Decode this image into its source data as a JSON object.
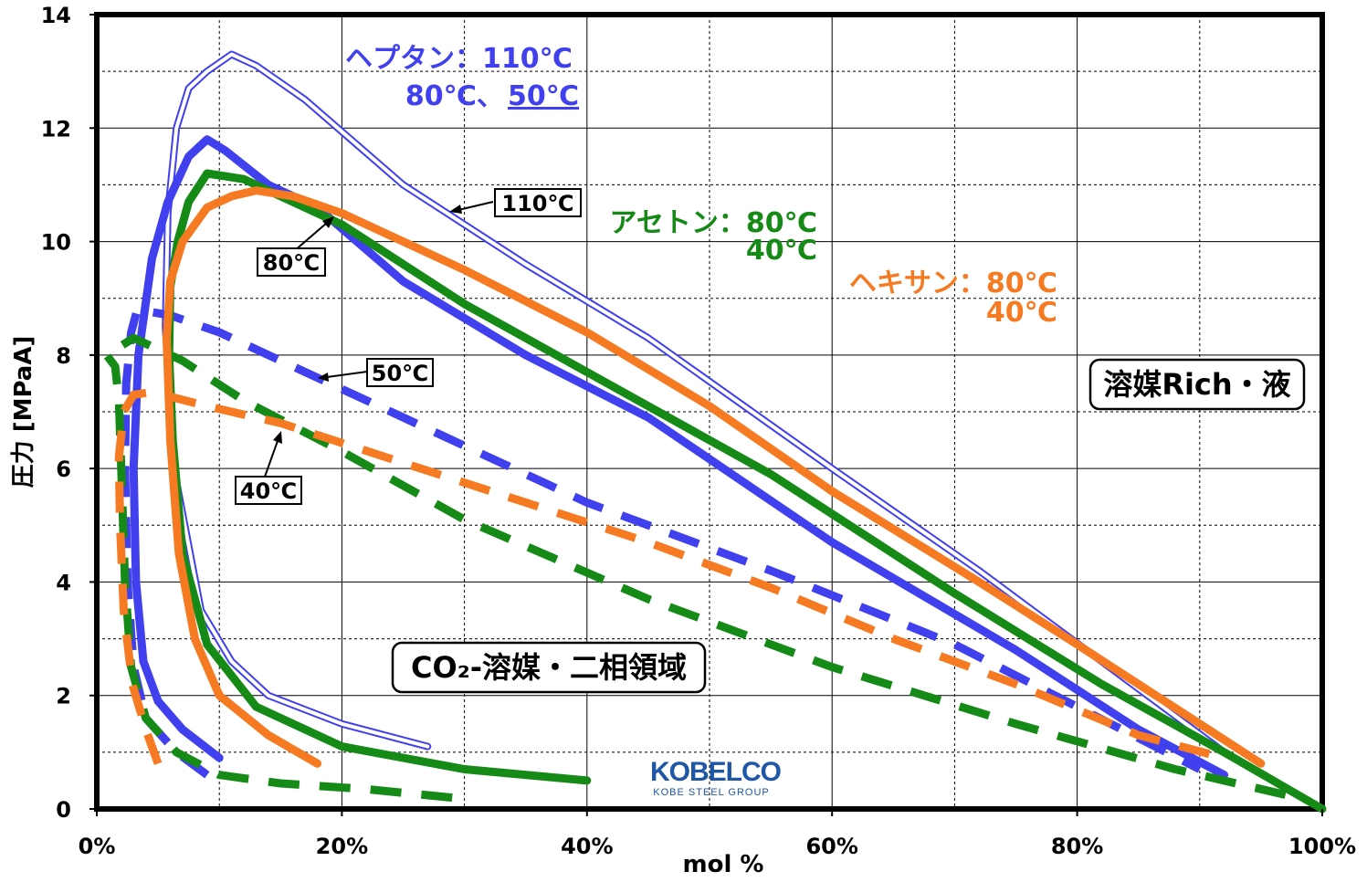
{
  "chart_data": {
    "type": "line",
    "xlabel": "mol %",
    "ylabel": "圧力 [MPaA]",
    "xlim": [
      0,
      100
    ],
    "ylim": [
      0,
      14
    ],
    "x_ticks": [
      "0%",
      "20%",
      "40%",
      "60%",
      "80%",
      "100%"
    ],
    "y_ticks": [
      "0",
      "2",
      "4",
      "6",
      "8",
      "10",
      "12",
      "14"
    ],
    "grid": true,
    "colors": {
      "heptane": "#4040ee",
      "acetone": "#168a16",
      "hexane": "#f57a22"
    },
    "series": [
      {
        "name": "ヘプタン 110℃",
        "color": "#4040ee",
        "style": "double-thin",
        "points": [
          [
            27,
            1.1
          ],
          [
            20,
            1.5
          ],
          [
            14,
            2.0
          ],
          [
            11,
            2.6
          ],
          [
            8.5,
            3.5
          ],
          [
            6.3,
            6
          ],
          [
            5.6,
            8.5
          ],
          [
            5.8,
            10.5
          ],
          [
            6.5,
            12
          ],
          [
            7.5,
            12.7
          ],
          [
            9,
            13.0
          ],
          [
            11,
            13.3
          ],
          [
            13,
            13.1
          ],
          [
            17,
            12.5
          ],
          [
            25,
            11
          ],
          [
            35,
            9.6
          ],
          [
            45,
            8.3
          ],
          [
            60,
            6
          ],
          [
            72,
            4.2
          ],
          [
            82,
            2.6
          ],
          [
            92,
            1.0
          ]
        ]
      },
      {
        "name": "ヘプタン 80℃",
        "color": "#4040ee",
        "style": "solid",
        "points": [
          [
            10,
            0.9
          ],
          [
            7,
            1.4
          ],
          [
            5,
            1.9
          ],
          [
            3.8,
            2.6
          ],
          [
            3.2,
            4
          ],
          [
            3,
            6
          ],
          [
            3.4,
            8
          ],
          [
            4.5,
            9.7
          ],
          [
            5.8,
            10.7
          ],
          [
            7.5,
            11.5
          ],
          [
            9,
            11.8
          ],
          [
            10.5,
            11.6
          ],
          [
            14,
            11.0
          ],
          [
            18,
            10.6
          ],
          [
            25,
            9.3
          ],
          [
            35,
            8.0
          ],
          [
            45,
            6.9
          ],
          [
            60,
            4.7
          ],
          [
            75,
            2.8
          ],
          [
            85,
            1.4
          ],
          [
            92,
            0.6
          ]
        ]
      },
      {
        "name": "ヘプタン 50℃",
        "color": "#4040ee",
        "style": "dashed",
        "points": [
          [
            9,
            0.6
          ],
          [
            6.5,
            1.0
          ],
          [
            4,
            1.6
          ],
          [
            3,
            2.5
          ],
          [
            2.5,
            4
          ],
          [
            2.3,
            6
          ],
          [
            2.4,
            7.5
          ],
          [
            2.8,
            8.4
          ],
          [
            3.3,
            8.8
          ],
          [
            6,
            8.7
          ],
          [
            10,
            8.4
          ],
          [
            20,
            7.4
          ],
          [
            30,
            6.4
          ],
          [
            40,
            5.4
          ],
          [
            55,
            4.2
          ],
          [
            70,
            2.9
          ],
          [
            80,
            1.8
          ],
          [
            90,
            0.7
          ]
        ]
      },
      {
        "name": "アセトン 80℃",
        "color": "#168a16",
        "style": "solid",
        "points": [
          [
            40,
            0.5
          ],
          [
            30,
            0.7
          ],
          [
            20,
            1.1
          ],
          [
            13,
            1.8
          ],
          [
            9,
            2.9
          ],
          [
            7,
            4.5
          ],
          [
            6.2,
            6.5
          ],
          [
            5.9,
            8
          ],
          [
            6,
            9.2
          ],
          [
            6.6,
            10
          ],
          [
            7.5,
            10.7
          ],
          [
            9,
            11.2
          ],
          [
            12,
            11.1
          ],
          [
            15,
            10.8
          ],
          [
            20,
            10.3
          ],
          [
            30,
            8.9
          ],
          [
            40,
            7.7
          ],
          [
            55,
            5.9
          ],
          [
            70,
            3.8
          ],
          [
            82,
            2.2
          ],
          [
            92,
            1.0
          ],
          [
            100,
            0.0
          ]
        ]
      },
      {
        "name": "アセトン 40℃",
        "color": "#168a16",
        "style": "dashed",
        "points": [
          [
            29,
            0.2
          ],
          [
            22,
            0.35
          ],
          [
            15,
            0.45
          ],
          [
            10,
            0.6
          ],
          [
            6.5,
            1.0
          ],
          [
            4,
            1.6
          ],
          [
            2.8,
            2.5
          ],
          [
            2.3,
            4
          ],
          [
            2.0,
            6
          ],
          [
            1.8,
            7.2
          ],
          [
            1.5,
            7.8
          ],
          [
            0.8,
            8.0
          ],
          [
            3,
            8.3
          ],
          [
            7,
            7.9
          ],
          [
            12,
            7.2
          ],
          [
            20,
            6.3
          ],
          [
            30,
            5.1
          ],
          [
            45,
            3.7
          ],
          [
            60,
            2.5
          ],
          [
            75,
            1.5
          ],
          [
            88,
            0.7
          ],
          [
            98,
            0.2
          ]
        ]
      },
      {
        "name": "ヘキサン 80℃",
        "color": "#f57a22",
        "style": "solid",
        "points": [
          [
            18,
            0.8
          ],
          [
            14,
            1.3
          ],
          [
            10,
            2.0
          ],
          [
            8,
            3.0
          ],
          [
            6.7,
            4.5
          ],
          [
            6.0,
            6.5
          ],
          [
            5.7,
            8.3
          ],
          [
            6,
            9.3
          ],
          [
            7,
            10.0
          ],
          [
            9,
            10.6
          ],
          [
            11,
            10.8
          ],
          [
            13,
            10.9
          ],
          [
            16,
            10.8
          ],
          [
            20,
            10.5
          ],
          [
            30,
            9.5
          ],
          [
            40,
            8.4
          ],
          [
            50,
            7.1
          ],
          [
            60,
            5.6
          ],
          [
            72,
            4.0
          ],
          [
            80,
            2.9
          ],
          [
            95,
            0.8
          ]
        ]
      },
      {
        "name": "ヘキサン 40℃",
        "color": "#f57a22",
        "style": "dashed",
        "points": [
          [
            5,
            0.8
          ],
          [
            4,
            1.4
          ],
          [
            2.9,
            2.2
          ],
          [
            2.2,
            3.5
          ],
          [
            1.9,
            5
          ],
          [
            1.8,
            6.2
          ],
          [
            2.2,
            7.0
          ],
          [
            3,
            7.3
          ],
          [
            4.5,
            7.35
          ],
          [
            9,
            7.1
          ],
          [
            15,
            6.8
          ],
          [
            25,
            6.1
          ],
          [
            35,
            5.4
          ],
          [
            45,
            4.7
          ],
          [
            55,
            3.9
          ],
          [
            65,
            3.0
          ],
          [
            75,
            2.2
          ],
          [
            85,
            1.3
          ],
          [
            92,
            0.9
          ]
        ]
      }
    ],
    "annotations": {
      "heptane_line1": "ヘプタン：110℃",
      "heptane_line2a": "80℃、",
      "heptane_line2b": "50℃",
      "acetone_line1": "アセトン：80℃",
      "acetone_line2": "40℃",
      "hexane_line1": "ヘキサン：80℃",
      "hexane_line2": "40℃",
      "box_110": "110℃",
      "box_80": "80℃",
      "box_50": "50℃",
      "box_40": "40℃",
      "region_liquid": "溶媒Rich・液",
      "region_two_phase": "CO₂-溶媒・二相領域"
    }
  },
  "logo": {
    "name": "KOBELCO",
    "sub": "KOBE STEEL GROUP"
  }
}
